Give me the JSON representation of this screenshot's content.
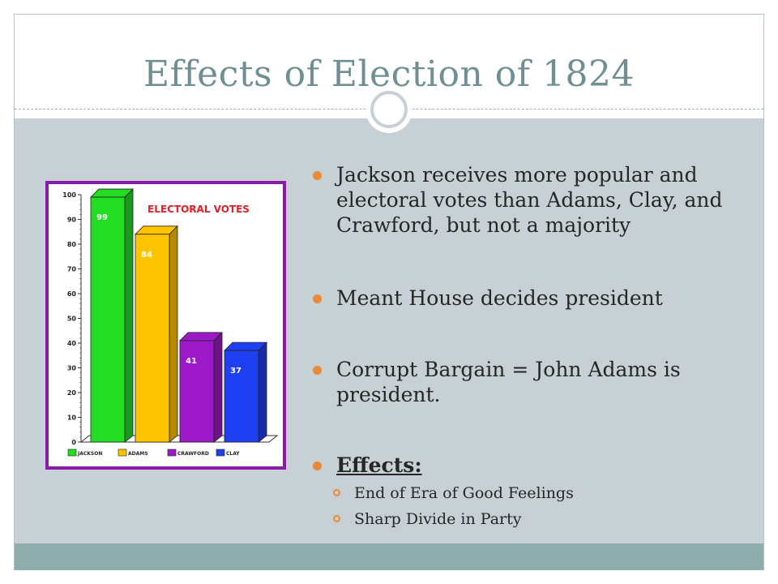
{
  "slide": {
    "title": "Effects of Election of 1824"
  },
  "bullets": [
    {
      "text": "Jackson receives more popular and electoral votes than Adams, Clay, and Crawford, but not a majority"
    },
    {
      "text": "Meant House decides president"
    },
    {
      "text": "Corrupt Bargain =  John Adams is president."
    },
    {
      "text": "Effects:"
    }
  ],
  "sub_bullets": [
    {
      "text": "End of Era of Good Feelings"
    },
    {
      "text": "Sharp Divide in Party"
    }
  ],
  "colors": {
    "title": "#6f8f93",
    "content_bg": "#c7d1d5",
    "footer_band": "#8fadad",
    "bullet_accent": "#e88a37",
    "chart_border": "#8a1aa8"
  },
  "chart_data": {
    "type": "bar",
    "title": "ELECTORAL VOTES",
    "categories": [
      "JACKSON",
      "ADAMS",
      "CRAWFORD",
      "CLAY"
    ],
    "values": [
      99,
      84,
      41,
      37
    ],
    "colors": [
      "#22dd22",
      "#ffc400",
      "#9b19c6",
      "#1f3ff2"
    ],
    "ylim": [
      0,
      100
    ],
    "yticks": [
      0,
      10,
      20,
      30,
      40,
      50,
      60,
      70,
      80,
      90,
      100
    ],
    "bars_3d": true,
    "legend": "bottom"
  }
}
